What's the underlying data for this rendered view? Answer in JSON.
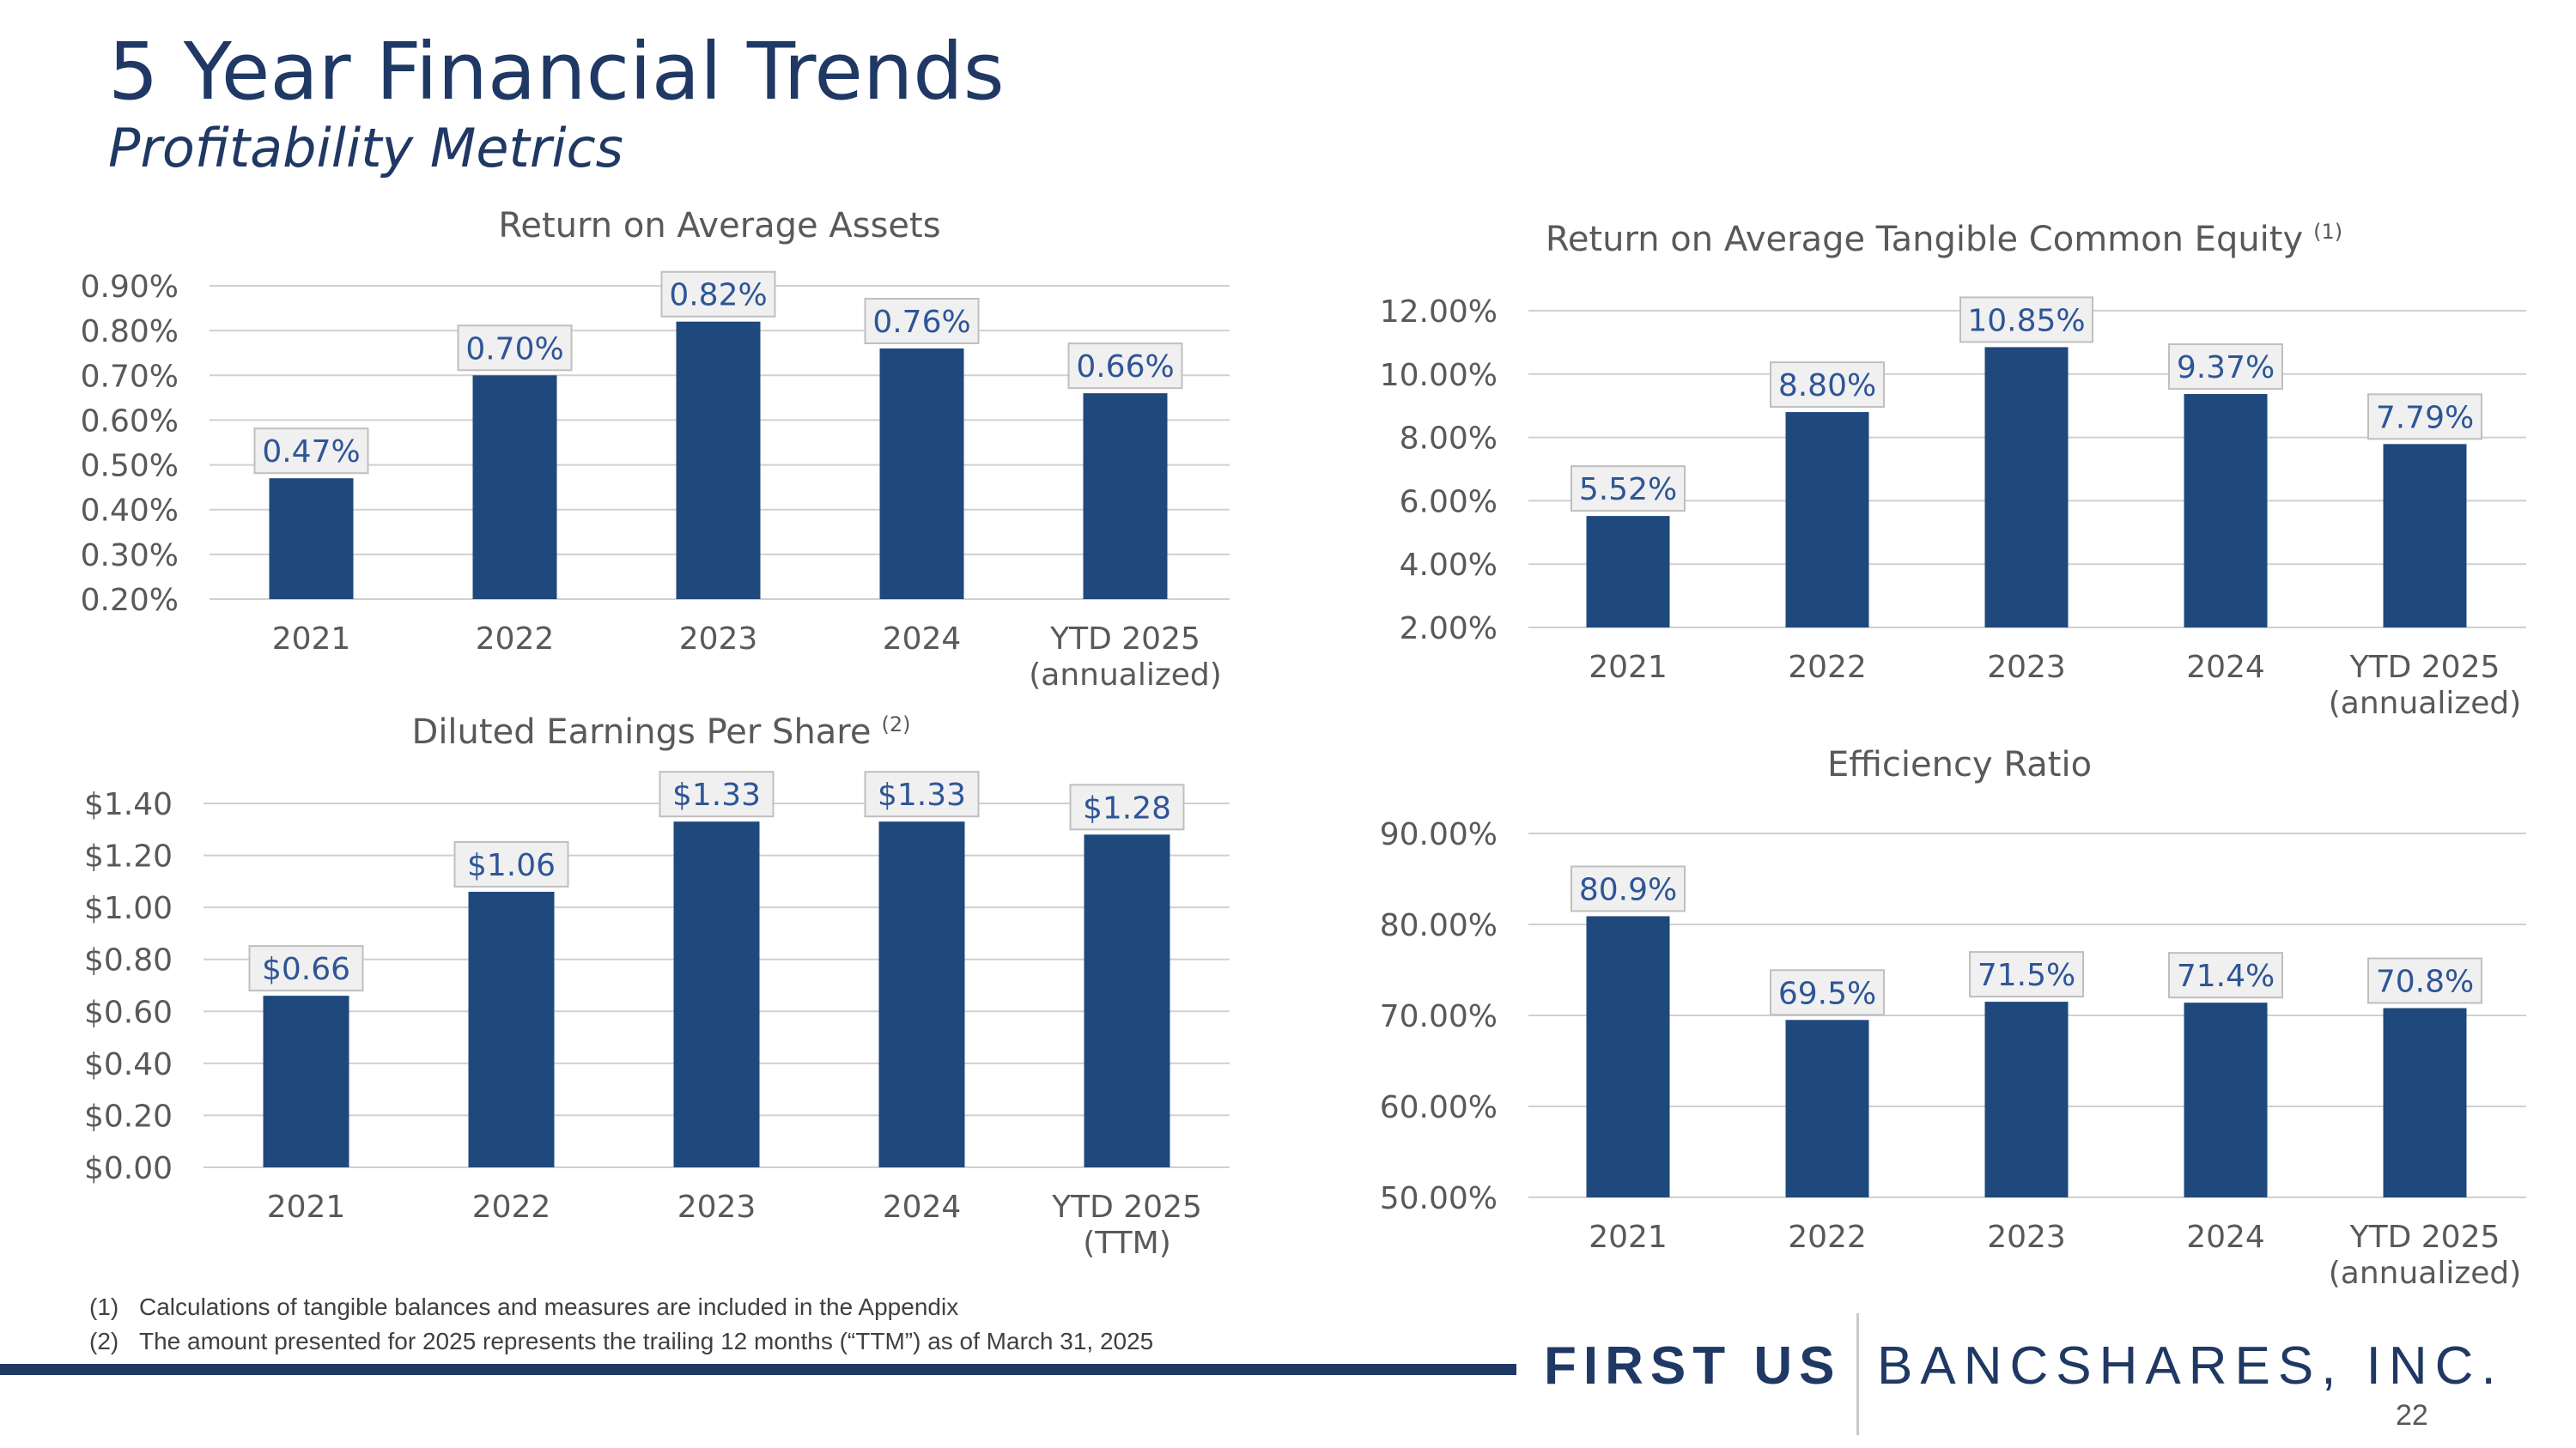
{
  "page": {
    "title": "5 Year Financial Trends",
    "subtitle": "Profitability Metrics",
    "page_number": "22"
  },
  "brand": {
    "left": "FIRST US",
    "right": "BANCSHARES, INC."
  },
  "footnotes": [
    {
      "num": "(1)",
      "text": "Calculations of tangible balances and measures are included in the Appendix"
    },
    {
      "num": "(2)",
      "text": "The amount presented for 2025 represents the trailing 12 months (“TTM”) as of March 31, 2025"
    }
  ],
  "colors": {
    "bar": "#1f497d",
    "title": "#1f3864",
    "label": "#2e5597"
  },
  "chart_data": [
    {
      "id": "roaa",
      "type": "bar",
      "title": "Return on Average Assets",
      "title_sup": "",
      "categories": [
        [
          "2021"
        ],
        [
          "2022"
        ],
        [
          "2023"
        ],
        [
          "2024"
        ],
        [
          "YTD 2025",
          "(annualized)"
        ]
      ],
      "values": [
        0.47,
        0.7,
        0.82,
        0.76,
        0.66
      ],
      "value_labels": [
        "0.47%",
        "0.70%",
        "0.82%",
        "0.76%",
        "0.66%"
      ],
      "ylim": [
        0.2,
        0.9
      ],
      "yticks": [
        0.2,
        0.3,
        0.4,
        0.5,
        0.6,
        0.7,
        0.8,
        0.9
      ],
      "ytick_labels": [
        "0.20%",
        "0.30%",
        "0.40%",
        "0.50%",
        "0.60%",
        "0.70%",
        "0.80%",
        "0.90%"
      ]
    },
    {
      "id": "rotce",
      "type": "bar",
      "title": "Return on Average Tangible Common Equity",
      "title_sup": "(1)",
      "categories": [
        [
          "2021"
        ],
        [
          "2022"
        ],
        [
          "2023"
        ],
        [
          "2024"
        ],
        [
          "YTD 2025",
          "(annualized)"
        ]
      ],
      "values": [
        5.52,
        8.8,
        10.85,
        9.37,
        7.79
      ],
      "value_labels": [
        "5.52%",
        "8.80%",
        "10.85%",
        "9.37%",
        "7.79%"
      ],
      "ylim": [
        2.0,
        12.0
      ],
      "yticks": [
        2.0,
        4.0,
        6.0,
        8.0,
        10.0,
        12.0
      ],
      "ytick_labels": [
        "2.00%",
        "4.00%",
        "6.00%",
        "8.00%",
        "10.00%",
        "12.00%"
      ]
    },
    {
      "id": "eps",
      "type": "bar",
      "title": "Diluted Earnings Per Share",
      "title_sup": "(2)",
      "categories": [
        [
          "2021"
        ],
        [
          "2022"
        ],
        [
          "2023"
        ],
        [
          "2024"
        ],
        [
          "YTD 2025",
          "(TTM)"
        ]
      ],
      "values": [
        0.66,
        1.06,
        1.33,
        1.33,
        1.28
      ],
      "value_labels": [
        "$0.66",
        "$1.06",
        "$1.33",
        "$1.33",
        "$1.28"
      ],
      "ylim": [
        0.0,
        1.4
      ],
      "yticks": [
        0.0,
        0.2,
        0.4,
        0.6,
        0.8,
        1.0,
        1.2,
        1.4
      ],
      "ytick_labels": [
        "$0.00",
        "$0.20",
        "$0.40",
        "$0.60",
        "$0.80",
        "$1.00",
        "$1.20",
        "$1.40"
      ]
    },
    {
      "id": "efficiency",
      "type": "bar",
      "title": "Efficiency Ratio",
      "title_sup": "",
      "categories": [
        [
          "2021"
        ],
        [
          "2022"
        ],
        [
          "2023"
        ],
        [
          "2024"
        ],
        [
          "YTD 2025",
          "(annualized)"
        ]
      ],
      "values": [
        80.9,
        69.5,
        71.5,
        71.4,
        70.8
      ],
      "value_labels": [
        "80.9%",
        "69.5%",
        "71.5%",
        "71.4%",
        "70.8%"
      ],
      "ylim": [
        50.0,
        90.0
      ],
      "yticks": [
        50.0,
        60.0,
        70.0,
        80.0,
        90.0
      ],
      "ytick_labels": [
        "50.00%",
        "60.00%",
        "70.00%",
        "80.00%",
        "90.00%"
      ]
    }
  ]
}
